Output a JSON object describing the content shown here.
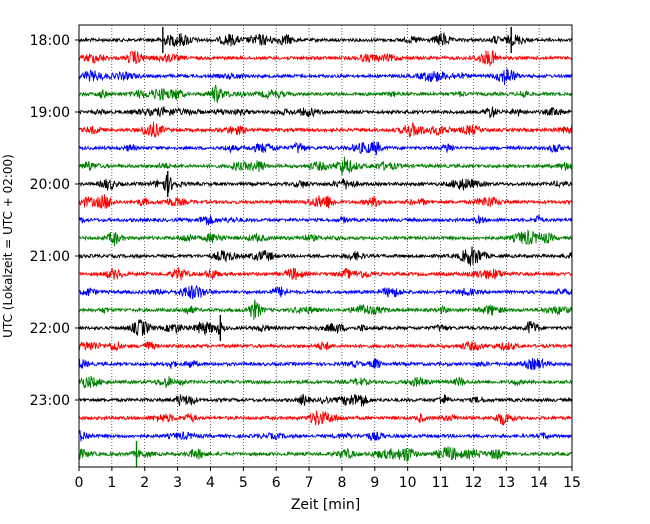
{
  "chart_data": {
    "type": "line",
    "title": "",
    "xlabel": "Zeit  [min]",
    "ylabel": "UTC (Lokalzeit = UTC + 02:00)",
    "xlim": [
      0,
      15
    ],
    "x_ticks": [
      "0",
      "1",
      "2",
      "3",
      "4",
      "5",
      "6",
      "7",
      "8",
      "9",
      "10",
      "11",
      "12",
      "13",
      "14",
      "15"
    ],
    "y_ticks": [
      "18:00",
      "19:00",
      "20:00",
      "21:00",
      "22:00",
      "23:00"
    ],
    "row_interval_minutes": 15,
    "row_count": 24,
    "first_row": "18:00",
    "last_row": "23:45",
    "grid": "vertical dotted lines at each minute",
    "trace_colors": [
      "#000000",
      "#ff0000",
      "#0000ff",
      "#008000"
    ],
    "spikes": [
      {
        "row": "18:00",
        "minute": 2.55
      },
      {
        "row": "18:00",
        "minute": 13.15
      },
      {
        "row": "20:00",
        "minute": 2.7
      },
      {
        "row": "22:00",
        "minute": 4.3
      },
      {
        "row": "23:45",
        "minute": 1.75
      }
    ]
  }
}
